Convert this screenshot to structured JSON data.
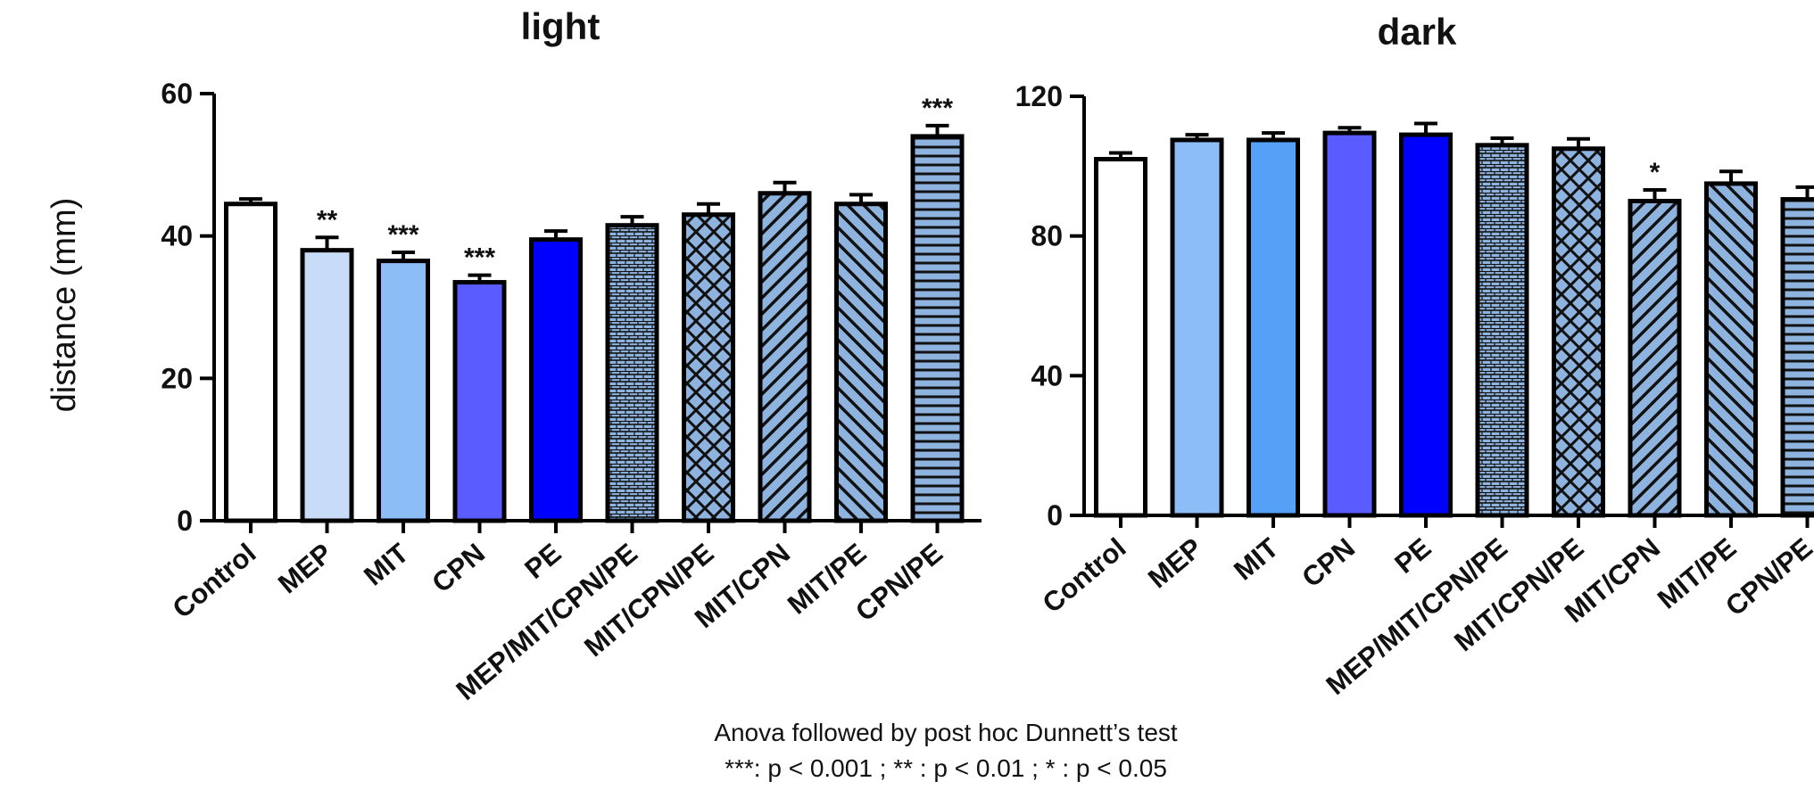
{
  "chart_data": [
    {
      "type": "bar",
      "title": "light",
      "ylabel": "distance (mm)",
      "xlabel": "",
      "ylim": [
        0,
        60
      ],
      "yticks": [
        0,
        20,
        40,
        60
      ],
      "categories": [
        "Control",
        "MEP",
        "MIT",
        "CPN",
        "PE",
        "MEP/MIT/CPN/PE",
        "MIT/CPN/PE",
        "MIT/CPN",
        "MIT/PE",
        "CPN/PE"
      ],
      "values": [
        44.5,
        38,
        36.5,
        33.5,
        39.5,
        41.5,
        43,
        46,
        44.5,
        54
      ],
      "errors": [
        0.7,
        1.8,
        1.2,
        1.0,
        1.2,
        1.2,
        1.5,
        1.5,
        1.3,
        1.5
      ],
      "significance": [
        "",
        "**",
        "***",
        "***",
        "",
        "",
        "",
        "",
        "",
        "***"
      ],
      "fills": [
        "#ffffff",
        "#c9dcf7",
        "#8dbdf6",
        "#5b5cff",
        "#0000ff",
        "#8fb3df",
        "#8fb3df",
        "#8fb3df",
        "#8fb3df",
        "#8fb3df"
      ],
      "patterns": [
        "none",
        "none",
        "none",
        "none",
        "none",
        "brick",
        "crosshatch",
        "diag-up",
        "diag-down",
        "horizontal"
      ]
    },
    {
      "type": "bar",
      "title": "dark",
      "ylabel": "",
      "xlabel": "",
      "ylim": [
        0,
        120
      ],
      "yticks": [
        0,
        40,
        80,
        120
      ],
      "categories": [
        "Control",
        "MEP",
        "MIT",
        "CPN",
        "PE",
        "MEP/MIT/CPN/PE",
        "MIT/CPN/PE",
        "MIT/CPN",
        "MIT/PE",
        "CPN/PE"
      ],
      "values": [
        102,
        107.5,
        107.5,
        109.5,
        109,
        106,
        105,
        90,
        95,
        90.5
      ],
      "errors": [
        1.8,
        1.5,
        2.0,
        1.5,
        3.2,
        2.0,
        2.8,
        3.2,
        3.5,
        3.5
      ],
      "significance": [
        "",
        "",
        "",
        "",
        "",
        "",
        "",
        "*",
        "",
        ""
      ],
      "fills": [
        "#ffffff",
        "#8dbdf6",
        "#56a0f8",
        "#5b5cff",
        "#0000ff",
        "#8fb3df",
        "#8fb3df",
        "#8fb3df",
        "#8fb3df",
        "#8fb3df"
      ],
      "patterns": [
        "none",
        "none",
        "none",
        "none",
        "none",
        "brick",
        "crosshatch",
        "diag-up",
        "diag-down",
        "horizontal"
      ]
    }
  ],
  "footnote": {
    "line1": "Anova followed by post hoc Dunnett’s test",
    "line2": "***: p < 0.001 ; ** : p < 0.01 ; * : p < 0.05"
  }
}
